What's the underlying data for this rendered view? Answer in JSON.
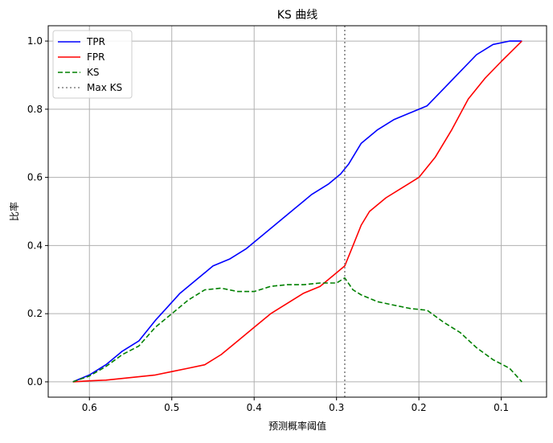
{
  "chart_data": {
    "type": "line",
    "title": "KS 曲线",
    "xlabel": "预测概率阈值",
    "ylabel": "比率",
    "x_reversed": true,
    "xlim": [
      0.65,
      0.045
    ],
    "ylim": [
      -0.045,
      1.045
    ],
    "xticks": [
      0.6,
      0.5,
      0.4,
      0.3,
      0.2,
      0.1
    ],
    "xtick_labels": [
      "0.6",
      "0.5",
      "0.4",
      "0.3",
      "0.2",
      "0.1"
    ],
    "yticks": [
      0.0,
      0.2,
      0.4,
      0.6,
      0.8,
      1.0
    ],
    "ytick_labels": [
      "0.0",
      "0.2",
      "0.4",
      "0.6",
      "0.8",
      "1.0"
    ],
    "grid": true,
    "legend_position": "top-left",
    "series": [
      {
        "name": "TPR",
        "color": "#0000ff",
        "style": "solid",
        "points": [
          [
            0.62,
            0.0
          ],
          [
            0.6,
            0.02
          ],
          [
            0.58,
            0.05
          ],
          [
            0.56,
            0.09
          ],
          [
            0.54,
            0.12
          ],
          [
            0.52,
            0.18
          ],
          [
            0.505,
            0.22
          ],
          [
            0.49,
            0.26
          ],
          [
            0.47,
            0.3
          ],
          [
            0.45,
            0.34
          ],
          [
            0.43,
            0.36
          ],
          [
            0.41,
            0.39
          ],
          [
            0.39,
            0.43
          ],
          [
            0.37,
            0.47
          ],
          [
            0.35,
            0.51
          ],
          [
            0.33,
            0.55
          ],
          [
            0.31,
            0.58
          ],
          [
            0.295,
            0.61
          ],
          [
            0.285,
            0.64
          ],
          [
            0.27,
            0.7
          ],
          [
            0.25,
            0.74
          ],
          [
            0.23,
            0.77
          ],
          [
            0.21,
            0.79
          ],
          [
            0.19,
            0.81
          ],
          [
            0.17,
            0.86
          ],
          [
            0.15,
            0.91
          ],
          [
            0.13,
            0.96
          ],
          [
            0.11,
            0.99
          ],
          [
            0.09,
            1.0
          ],
          [
            0.075,
            1.0
          ]
        ]
      },
      {
        "name": "FPR",
        "color": "#ff0000",
        "style": "solid",
        "points": [
          [
            0.62,
            0.0
          ],
          [
            0.6,
            0.003
          ],
          [
            0.58,
            0.005
          ],
          [
            0.56,
            0.01
          ],
          [
            0.54,
            0.015
          ],
          [
            0.52,
            0.02
          ],
          [
            0.5,
            0.03
          ],
          [
            0.48,
            0.04
          ],
          [
            0.46,
            0.05
          ],
          [
            0.44,
            0.08
          ],
          [
            0.42,
            0.12
          ],
          [
            0.4,
            0.16
          ],
          [
            0.38,
            0.2
          ],
          [
            0.36,
            0.23
          ],
          [
            0.34,
            0.26
          ],
          [
            0.32,
            0.28
          ],
          [
            0.3,
            0.32
          ],
          [
            0.29,
            0.34
          ],
          [
            0.28,
            0.4
          ],
          [
            0.27,
            0.46
          ],
          [
            0.26,
            0.5
          ],
          [
            0.24,
            0.54
          ],
          [
            0.22,
            0.57
          ],
          [
            0.2,
            0.6
          ],
          [
            0.18,
            0.66
          ],
          [
            0.16,
            0.74
          ],
          [
            0.14,
            0.83
          ],
          [
            0.12,
            0.89
          ],
          [
            0.1,
            0.94
          ],
          [
            0.075,
            1.0
          ]
        ]
      },
      {
        "name": "KS",
        "color": "#008000",
        "style": "dashed",
        "points": [
          [
            0.62,
            0.0
          ],
          [
            0.6,
            0.017
          ],
          [
            0.58,
            0.045
          ],
          [
            0.56,
            0.08
          ],
          [
            0.54,
            0.105
          ],
          [
            0.52,
            0.16
          ],
          [
            0.5,
            0.2
          ],
          [
            0.48,
            0.24
          ],
          [
            0.46,
            0.27
          ],
          [
            0.44,
            0.275
          ],
          [
            0.42,
            0.265
          ],
          [
            0.4,
            0.265
          ],
          [
            0.38,
            0.28
          ],
          [
            0.36,
            0.285
          ],
          [
            0.34,
            0.285
          ],
          [
            0.32,
            0.29
          ],
          [
            0.3,
            0.29
          ],
          [
            0.29,
            0.305
          ],
          [
            0.28,
            0.27
          ],
          [
            0.27,
            0.255
          ],
          [
            0.25,
            0.235
          ],
          [
            0.23,
            0.225
          ],
          [
            0.21,
            0.215
          ],
          [
            0.19,
            0.21
          ],
          [
            0.17,
            0.175
          ],
          [
            0.15,
            0.145
          ],
          [
            0.13,
            0.1
          ],
          [
            0.11,
            0.065
          ],
          [
            0.09,
            0.04
          ],
          [
            0.075,
            0.0
          ]
        ]
      },
      {
        "name": "Max KS",
        "color": "#808080",
        "style": "dotted",
        "vline_x": 0.29
      }
    ]
  }
}
